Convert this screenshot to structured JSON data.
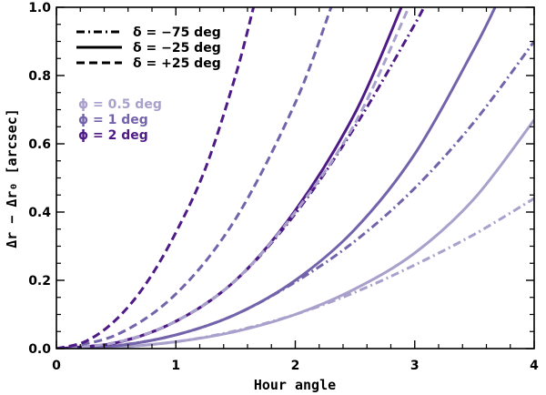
{
  "chart_data": {
    "type": "line",
    "xlabel": "Hour angle",
    "ylabel": "Δr − Δr₀ [arcsec]",
    "xlim": [
      0,
      4
    ],
    "ylim": [
      0,
      1.0
    ],
    "xticks": [
      0,
      1,
      2,
      3,
      4
    ],
    "yticks": [
      0.0,
      0.2,
      0.4,
      0.6,
      0.8,
      1.0
    ],
    "xtick_labels": [
      "0",
      "1",
      "2",
      "3",
      "4"
    ],
    "ytick_labels": [
      "0.0",
      "0.2",
      "0.4",
      "0.6",
      "0.8",
      "1.0"
    ],
    "grid": false,
    "legend_position": "top-left",
    "legend_linestyles": [
      {
        "label": "δ = −75 deg",
        "dash": "dashdot"
      },
      {
        "label": "δ = −25 deg",
        "dash": "solid"
      },
      {
        "label": "δ = +25 deg",
        "dash": "dashed"
      }
    ],
    "legend_colors": [
      {
        "label": "ϕ = 0.5 deg",
        "color": "#a9a0cc"
      },
      {
        "label": "ϕ = 1 deg",
        "color": "#7363ab"
      },
      {
        "label": "ϕ = 2 deg",
        "color": "#4e1a86"
      }
    ],
    "series": [
      {
        "delta": -75,
        "phi": 0.5,
        "dash": "dashdot",
        "color": "#a9a0cc",
        "x": [
          0,
          0.5,
          1,
          1.5,
          2,
          2.5,
          3,
          3.5,
          4
        ],
        "y": [
          0,
          0.004,
          0.02,
          0.052,
          0.1,
          0.165,
          0.245,
          0.335,
          0.44
        ]
      },
      {
        "delta": -75,
        "phi": 1,
        "dash": "dashdot",
        "color": "#7363ab",
        "x": [
          0,
          0.5,
          1,
          1.5,
          2,
          2.5,
          3,
          3.5,
          4
        ],
        "y": [
          0,
          0.009,
          0.04,
          0.1,
          0.195,
          0.315,
          0.47,
          0.665,
          0.9
        ]
      },
      {
        "delta": -75,
        "phi": 2,
        "dash": "dashdot",
        "color": "#4e1a86",
        "x": [
          0,
          0.5,
          1,
          1.5,
          2,
          2.5,
          3,
          3.1
        ],
        "y": [
          0,
          0.018,
          0.08,
          0.2,
          0.395,
          0.65,
          0.95,
          1.02
        ]
      },
      {
        "delta": -25,
        "phi": 0.5,
        "dash": "solid",
        "color": "#a9a0cc",
        "x": [
          0,
          0.5,
          1,
          1.5,
          2,
          2.5,
          3,
          3.5,
          4
        ],
        "y": [
          0,
          0.004,
          0.02,
          0.05,
          0.1,
          0.175,
          0.28,
          0.44,
          0.67
        ]
      },
      {
        "delta": -25,
        "phi": 1,
        "dash": "solid",
        "color": "#7363ab",
        "x": [
          0,
          0.5,
          1,
          1.5,
          2,
          2.5,
          3,
          3.5,
          3.7
        ],
        "y": [
          0,
          0.008,
          0.04,
          0.1,
          0.2,
          0.35,
          0.57,
          0.88,
          1.02
        ]
      },
      {
        "delta": -25,
        "phi": 2,
        "dash": "solid",
        "color": "#4e1a86",
        "x": [
          0,
          0.5,
          1,
          1.5,
          2,
          2.5,
          2.9
        ],
        "y": [
          0,
          0.017,
          0.08,
          0.2,
          0.405,
          0.69,
          1.01
        ]
      },
      {
        "delta": 25,
        "phi": 0.5,
        "dash": "dashed",
        "color": "#a9a0cc",
        "x": [
          0,
          0.5,
          1,
          1.5,
          2,
          2.5,
          2.95
        ],
        "y": [
          0,
          0.018,
          0.08,
          0.2,
          0.4,
          0.66,
          1.0
        ]
      },
      {
        "delta": 25,
        "phi": 1,
        "dash": "dashed",
        "color": "#7363ab",
        "x": [
          0,
          0.5,
          1,
          1.5,
          2,
          2.3
        ],
        "y": [
          0,
          0.04,
          0.16,
          0.38,
          0.72,
          1.0
        ]
      },
      {
        "delta": 25,
        "phi": 2,
        "dash": "dashed",
        "color": "#4e1a86",
        "x": [
          0,
          0.25,
          0.5,
          0.75,
          1,
          1.25,
          1.5,
          1.65
        ],
        "y": [
          0,
          0.022,
          0.085,
          0.19,
          0.34,
          0.53,
          0.8,
          1.0
        ]
      }
    ]
  }
}
